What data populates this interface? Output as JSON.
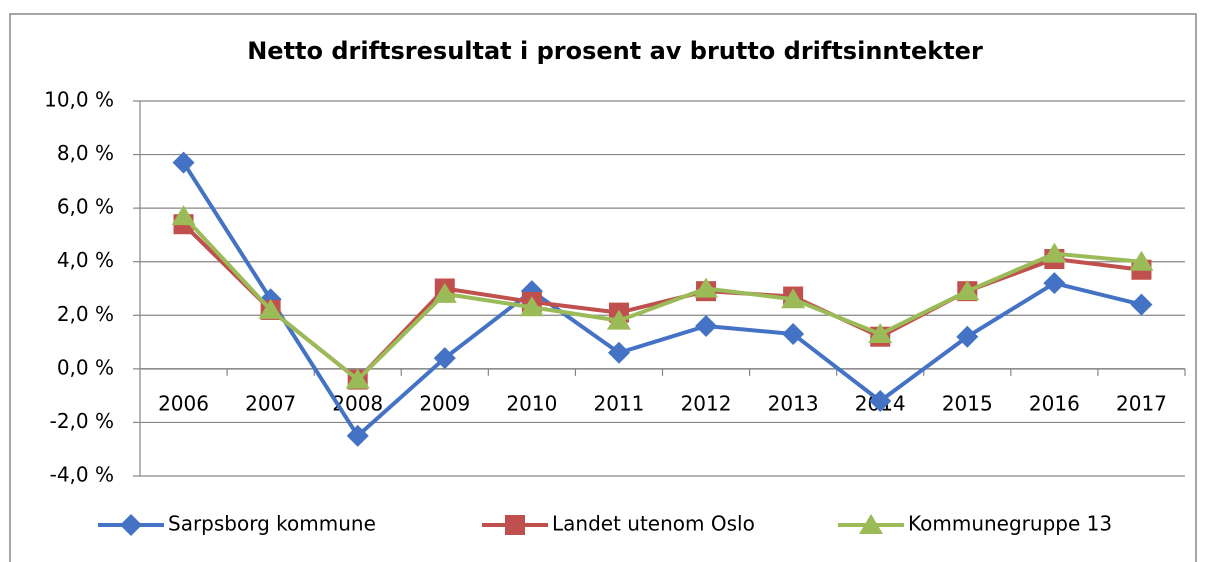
{
  "chart_data": {
    "type": "line",
    "title": "Netto driftsresultat i prosent av brutto driftsinntekter",
    "categories": [
      "2006",
      "2007",
      "2008",
      "2009",
      "2010",
      "2011",
      "2012",
      "2013",
      "2014",
      "2015",
      "2016",
      "2017"
    ],
    "series": [
      {
        "name": "Sarpsborg kommune",
        "color": "#4472c4",
        "marker": "diamond",
        "values": [
          7.7,
          2.6,
          -2.5,
          0.4,
          2.9,
          0.6,
          1.6,
          1.3,
          -1.2,
          1.2,
          3.2,
          2.4
        ]
      },
      {
        "name": "Landet utenom Oslo",
        "color": "#c0504d",
        "marker": "square",
        "values": [
          5.4,
          2.2,
          -0.4,
          3.0,
          2.5,
          2.1,
          2.9,
          2.7,
          1.2,
          2.9,
          4.1,
          3.7
        ]
      },
      {
        "name": "Kommunegruppe 13",
        "color": "#9bbb59",
        "marker": "triangle",
        "values": [
          5.7,
          2.2,
          -0.4,
          2.8,
          2.3,
          1.8,
          3.0,
          2.6,
          1.3,
          2.9,
          4.3,
          4.0
        ]
      }
    ],
    "ylim": [
      -4,
      10
    ],
    "yticks": [
      {
        "value": -4,
        "label": "-4,0 %"
      },
      {
        "value": -2,
        "label": "-2,0 %"
      },
      {
        "value": 0,
        "label": "0,0 %"
      },
      {
        "value": 2,
        "label": "2,0 %"
      },
      {
        "value": 4,
        "label": "4,0 %"
      },
      {
        "value": 6,
        "label": "6,0 %"
      },
      {
        "value": 8,
        "label": "8,0 %"
      },
      {
        "value": 10,
        "label": "10,0 %"
      }
    ],
    "grid": true,
    "legend": "bottom"
  }
}
